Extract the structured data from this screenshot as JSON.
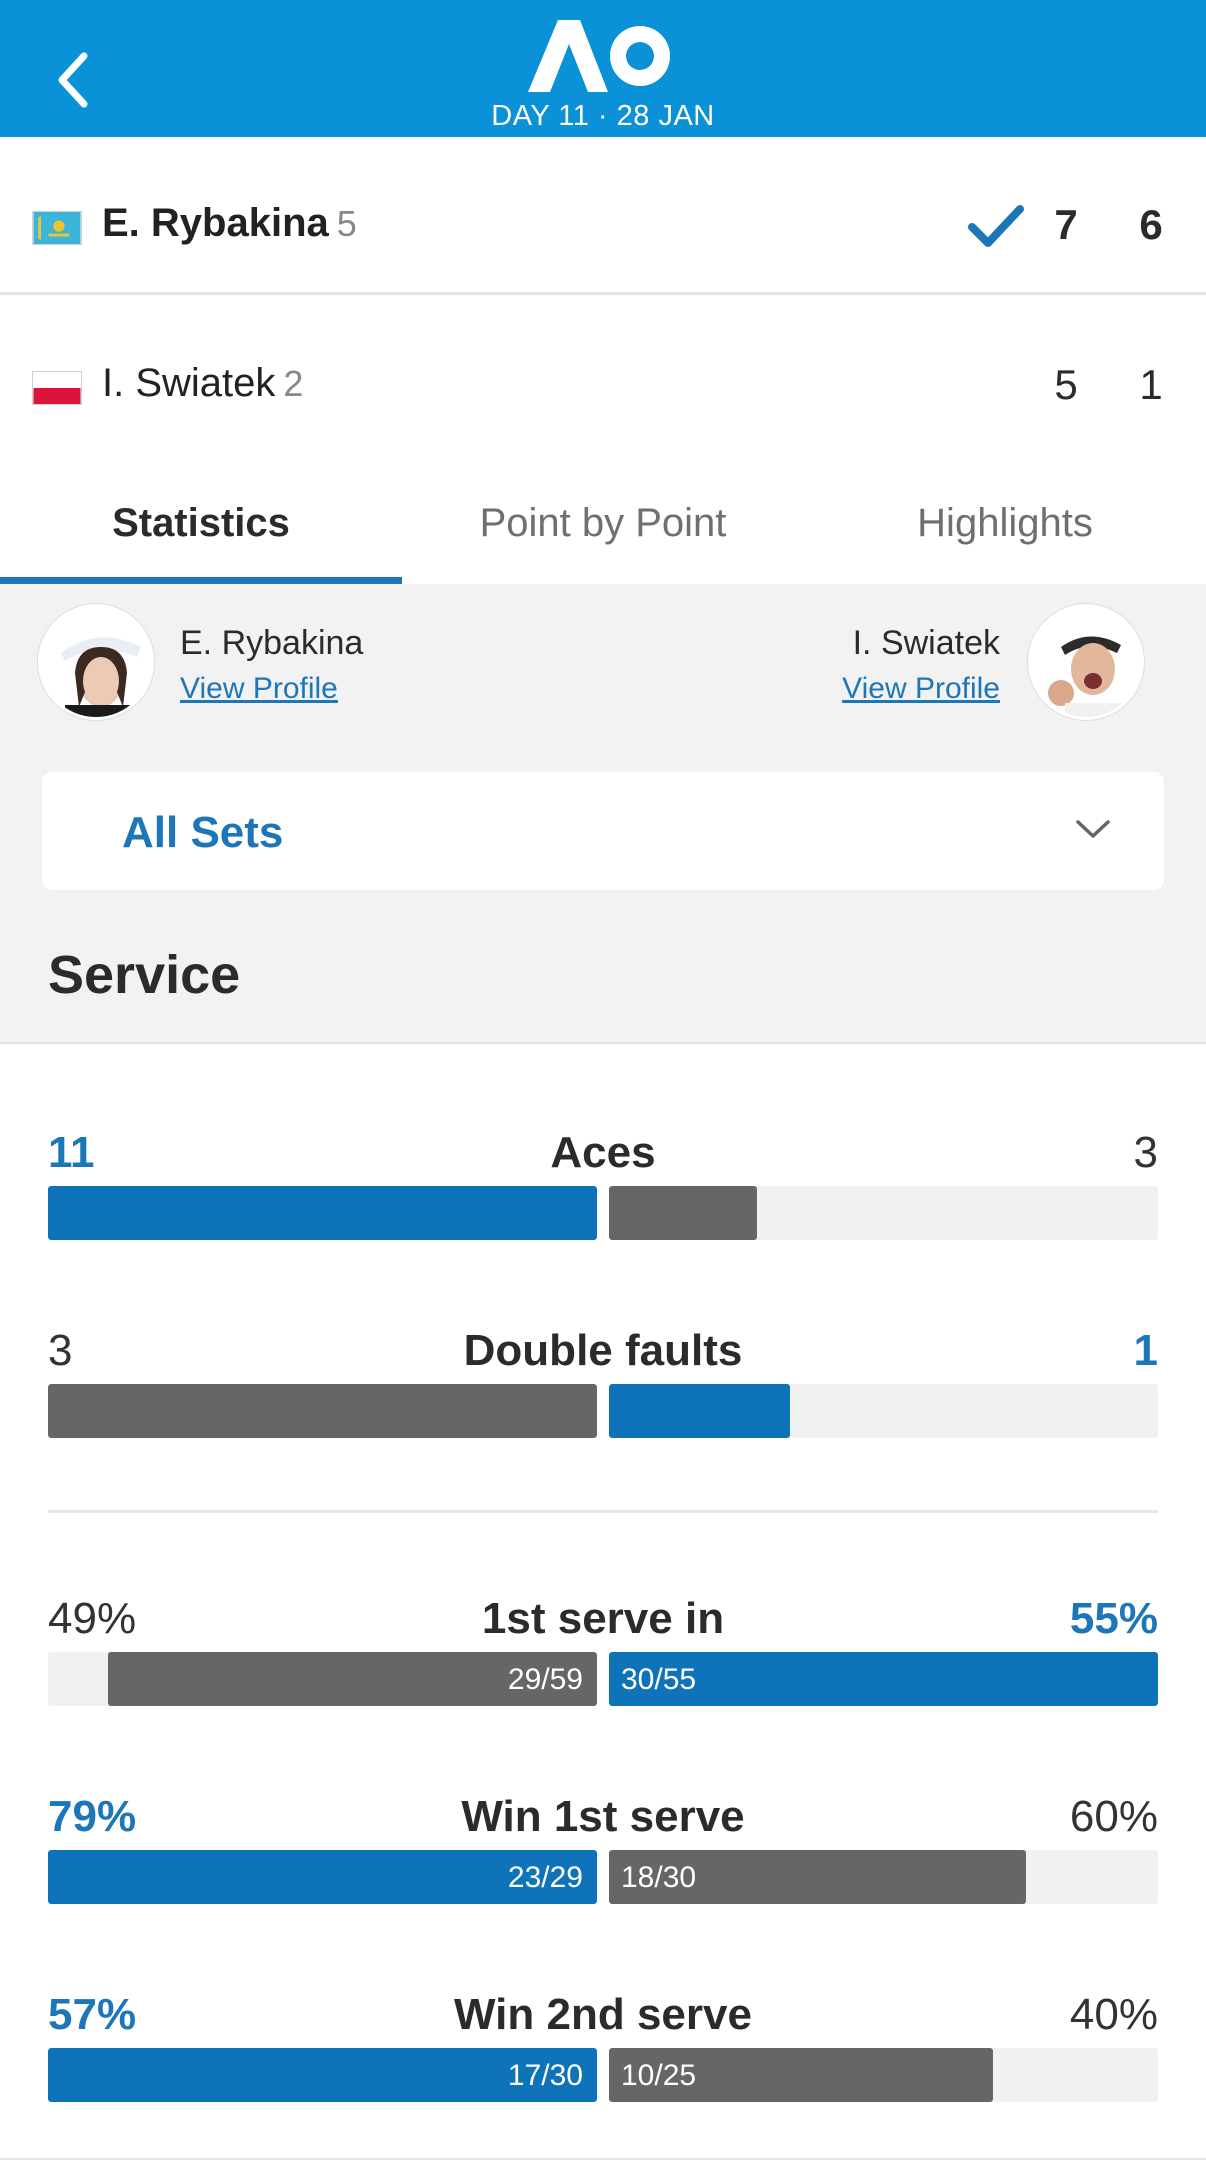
{
  "header": {
    "logo_text": "AO",
    "day_label": "DAY 11 · 28 JAN",
    "accent": "#0a91d8"
  },
  "match": {
    "players": [
      {
        "name": "E. Rybakina",
        "seed": "5",
        "flag": "kazakhstan-flag",
        "winner": true,
        "sets": [
          "7",
          "6"
        ]
      },
      {
        "name": "I. Swiatek",
        "seed": "2",
        "flag": "poland-flag",
        "winner": false,
        "sets": [
          "5",
          "1"
        ]
      }
    ]
  },
  "tabs": [
    {
      "label": "Statistics",
      "active": true
    },
    {
      "label": "Point by Point",
      "active": false
    },
    {
      "label": "Highlights",
      "active": false
    }
  ],
  "profiles": {
    "left": {
      "name": "E. Rybakina",
      "link": "View Profile"
    },
    "right": {
      "name": "I. Swiatek",
      "link": "View Profile"
    }
  },
  "set_selector": {
    "value": "All Sets"
  },
  "section": {
    "title": "Service"
  },
  "stats": [
    {
      "label": "Aces",
      "left": "11",
      "right": "3",
      "left_fill": 1.0,
      "right_fill": 0.27,
      "left_color": "blue",
      "right_color": "gray",
      "left_text": "",
      "right_text": "",
      "highlight": "left"
    },
    {
      "label": "Double faults",
      "left": "3",
      "right": "1",
      "left_fill": 1.0,
      "right_fill": 0.33,
      "left_color": "gray",
      "right_color": "blue",
      "left_text": "",
      "right_text": "",
      "highlight": "right"
    },
    {
      "label": "1st serve in",
      "left": "49%",
      "right": "55%",
      "left_fill": 0.89,
      "right_fill": 1.0,
      "left_color": "gray",
      "right_color": "blue",
      "left_text": "29/59",
      "right_text": "30/55",
      "highlight": "right"
    },
    {
      "label": "Win 1st serve",
      "left": "79%",
      "right": "60%",
      "left_fill": 1.0,
      "right_fill": 0.76,
      "left_color": "blue",
      "right_color": "gray",
      "left_text": "23/29",
      "right_text": "18/30",
      "highlight": "left"
    },
    {
      "label": "Win 2nd serve",
      "left": "57%",
      "right": "40%",
      "left_fill": 1.0,
      "right_fill": 0.7,
      "left_color": "blue",
      "right_color": "gray",
      "left_text": "17/30",
      "right_text": "10/25",
      "highlight": "left"
    }
  ]
}
